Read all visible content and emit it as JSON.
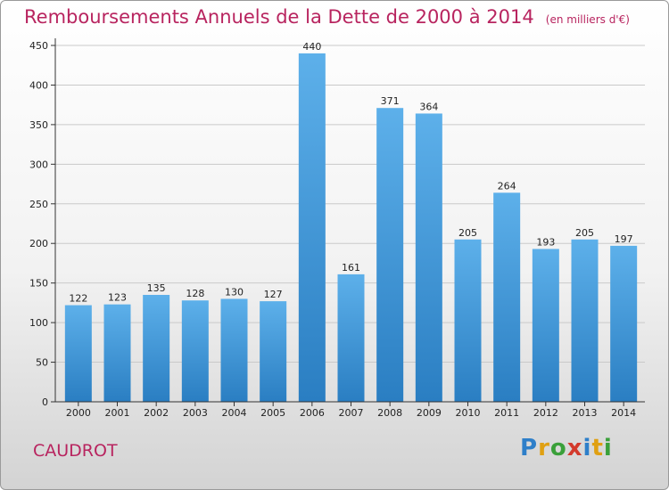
{
  "chart_data": {
    "type": "bar",
    "title": "Remboursements Annuels de la Dette de 2000 à 2014",
    "unit_note": "(en milliers d'€)",
    "categories": [
      "2000",
      "2001",
      "2002",
      "2003",
      "2004",
      "2005",
      "2006",
      "2007",
      "2008",
      "2009",
      "2010",
      "2011",
      "2012",
      "2013",
      "2014"
    ],
    "values": [
      122,
      123,
      135,
      128,
      130,
      127,
      440,
      161,
      371,
      364,
      205,
      264,
      193,
      205,
      197
    ],
    "value_labels": [
      "122",
      "123",
      "135",
      "128",
      "130",
      "127",
      "440",
      "161",
      "371",
      "364",
      "205",
      "264",
      "193",
      "205",
      "197"
    ],
    "yticks": [
      "0",
      "50",
      "100",
      "150",
      "200",
      "250",
      "300",
      "350",
      "400",
      "450"
    ],
    "ylim": [
      0,
      450
    ],
    "grid": true,
    "bar_color": "#4d9fdd"
  },
  "commune": "CAUDROT",
  "logo": {
    "letters": [
      "P",
      "r",
      "o",
      "x",
      "i",
      "t",
      "i"
    ],
    "colors": [
      "#2e7fc9",
      "#e0a012",
      "#3aa03a",
      "#d33a2c",
      "#2e7fc9",
      "#e0a012",
      "#3aa03a"
    ]
  }
}
